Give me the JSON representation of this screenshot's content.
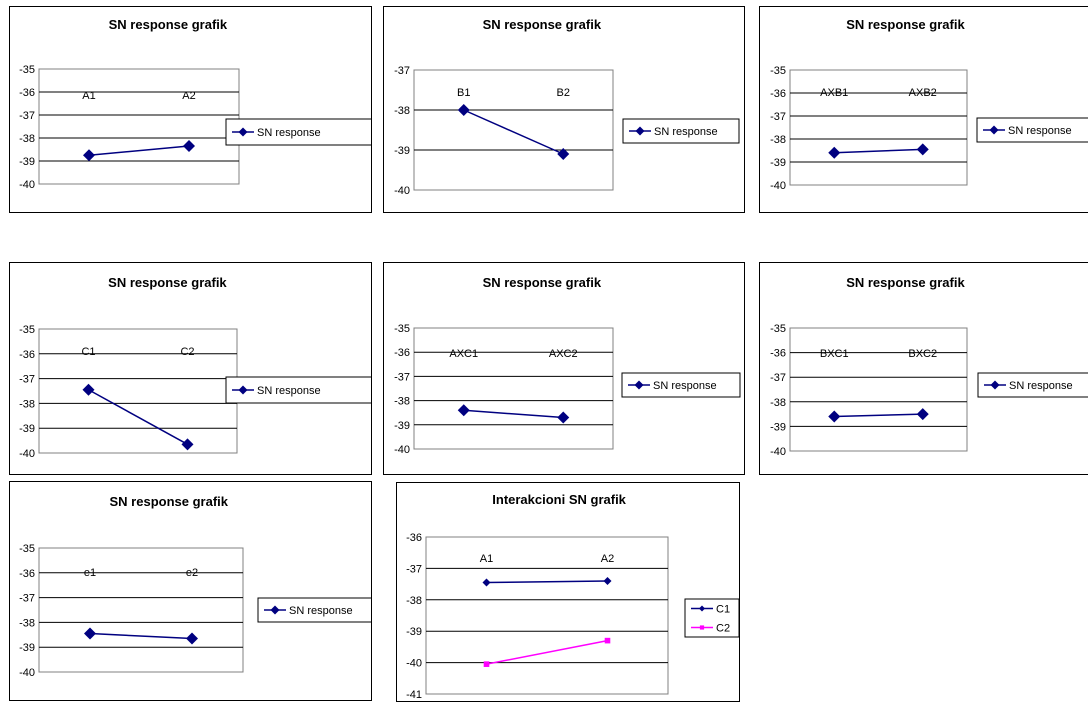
{
  "chart_data": [
    {
      "type": "line",
      "title": "SN response grafik",
      "categories": [
        "A1",
        "A2"
      ],
      "series": [
        {
          "name": "SN response",
          "values": [
            -38.75,
            -38.35
          ],
          "color": "#000080",
          "marker": "diamond"
        }
      ],
      "ylim": [
        -40,
        -35
      ],
      "yticks": [
        -35,
        -36,
        -37,
        -38,
        -39,
        -40
      ],
      "grid": true,
      "legend": "right"
    },
    {
      "type": "line",
      "title": "SN response grafik",
      "categories": [
        "B1",
        "B2"
      ],
      "series": [
        {
          "name": "SN response",
          "values": [
            -38.0,
            -39.1
          ],
          "color": "#000080",
          "marker": "diamond"
        }
      ],
      "ylim": [
        -40,
        -37
      ],
      "yticks": [
        -37,
        -38,
        -39,
        -40
      ],
      "grid": true,
      "legend": "right"
    },
    {
      "type": "line",
      "title": "SN response grafik",
      "categories": [
        "AXB1",
        "AXB2"
      ],
      "series": [
        {
          "name": "SN response",
          "values": [
            -38.6,
            -38.45
          ],
          "color": "#000080",
          "marker": "diamond"
        }
      ],
      "ylim": [
        -40,
        -35
      ],
      "yticks": [
        -35,
        -36,
        -37,
        -38,
        -39,
        -40
      ],
      "grid": true,
      "legend": "right"
    },
    {
      "type": "line",
      "title": "SN response grafik",
      "categories": [
        "C1",
        "C2"
      ],
      "series": [
        {
          "name": "SN response",
          "values": [
            -37.45,
            -39.65
          ],
          "color": "#000080",
          "marker": "diamond"
        }
      ],
      "ylim": [
        -40,
        -35
      ],
      "yticks": [
        -35,
        -36,
        -37,
        -38,
        -39,
        -40
      ],
      "grid": true,
      "legend": "right"
    },
    {
      "type": "line",
      "title": "SN response grafik",
      "categories": [
        "AXC1",
        "AXC2"
      ],
      "series": [
        {
          "name": "SN response",
          "values": [
            -38.4,
            -38.7
          ],
          "color": "#000080",
          "marker": "diamond"
        }
      ],
      "ylim": [
        -40,
        -35
      ],
      "yticks": [
        -35,
        -36,
        -37,
        -38,
        -39,
        -40
      ],
      "grid": true,
      "legend": "right"
    },
    {
      "type": "line",
      "title": "SN response grafik",
      "categories": [
        "BXC1",
        "BXC2"
      ],
      "series": [
        {
          "name": "SN response",
          "values": [
            -38.6,
            -38.5
          ],
          "color": "#000080",
          "marker": "diamond"
        }
      ],
      "ylim": [
        -40,
        -35
      ],
      "yticks": [
        -35,
        -36,
        -37,
        -38,
        -39,
        -40
      ],
      "grid": true,
      "legend": "right"
    },
    {
      "type": "line",
      "title": "SN response grafik",
      "categories": [
        "e1",
        "e2"
      ],
      "series": [
        {
          "name": "SN response",
          "values": [
            -38.45,
            -38.65
          ],
          "color": "#000080",
          "marker": "diamond"
        }
      ],
      "ylim": [
        -40,
        -35
      ],
      "yticks": [
        -35,
        -36,
        -37,
        -38,
        -39,
        -40
      ],
      "grid": true,
      "legend": "right"
    },
    {
      "type": "line",
      "title": "Interakcioni SN grafik",
      "categories": [
        "A1",
        "A2"
      ],
      "series": [
        {
          "name": "C1",
          "values": [
            -37.45,
            -37.4
          ],
          "color": "#000080",
          "marker": "diamond"
        },
        {
          "name": "C2",
          "values": [
            -40.05,
            -39.3
          ],
          "color": "#ff00ff",
          "marker": "square"
        }
      ],
      "ylim": [
        -41,
        -36
      ],
      "yticks": [
        -36,
        -37,
        -38,
        -39,
        -40,
        -41
      ],
      "grid": true,
      "legend": "right"
    }
  ]
}
